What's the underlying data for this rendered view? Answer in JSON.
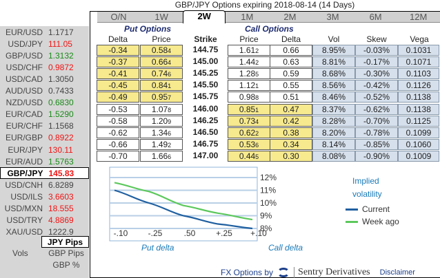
{
  "title": "GBP/JPY Options expiring 2018-08-14 (14 Days)",
  "sidebar": {
    "pairs": [
      {
        "symbol": "EUR/USD",
        "price": "1.1717",
        "trend": "flat"
      },
      {
        "symbol": "USD/JPY",
        "price": "111.05",
        "trend": "down"
      },
      {
        "symbol": "GBP/USD",
        "price": "1.3132",
        "trend": "up"
      },
      {
        "symbol": "USD/CHF",
        "price": "0.9872",
        "trend": "down"
      },
      {
        "symbol": "USD/CAD",
        "price": "1.3050",
        "trend": "flat"
      },
      {
        "symbol": "AUD/USD",
        "price": "0.7433",
        "trend": "flat"
      },
      {
        "symbol": "NZD/USD",
        "price": "0.6830",
        "trend": "up"
      },
      {
        "symbol": "EUR/CAD",
        "price": "1.5290",
        "trend": "up"
      },
      {
        "symbol": "EUR/CHF",
        "price": "1.1568",
        "trend": "flat"
      },
      {
        "symbol": "EUR/GBP",
        "price": "0.8922",
        "trend": "down"
      },
      {
        "symbol": "EUR/JPY",
        "price": "130.11",
        "trend": "down"
      },
      {
        "symbol": "EUR/AUD",
        "price": "1.5763",
        "trend": "up"
      },
      {
        "symbol": "GBP/JPY",
        "price": "145.83",
        "trend": "down",
        "selected": true
      },
      {
        "symbol": "USD/CNH",
        "price": "6.8289",
        "trend": "flat"
      },
      {
        "symbol": "USD/ILS",
        "price": "3.6603",
        "trend": "down"
      },
      {
        "symbol": "USD/MXN",
        "price": "18.555",
        "trend": "down"
      },
      {
        "symbol": "USD/TRY",
        "price": "4.8869",
        "trend": "down"
      },
      {
        "symbol": "XAU/USD",
        "price": "1222.9",
        "trend": "flat"
      }
    ],
    "units": {
      "vols_label": "Vols",
      "options": [
        "JPY Pips",
        "GBP Pips",
        "GBP %"
      ],
      "selected": "JPY Pips"
    }
  },
  "tabs": [
    "O/N",
    "1W",
    "2W",
    "1M",
    "2M",
    "3M",
    "6M",
    "12M"
  ],
  "active_tab": "2W",
  "put_header": "Put Options",
  "call_header": "Call Options",
  "columns": [
    "Delta",
    "Price",
    "Strike",
    "Price",
    "Delta",
    "Vol",
    "Skew",
    "Vega"
  ],
  "rows": [
    {
      "put_delta": "-0.34",
      "put_price": [
        "0.58",
        "4"
      ],
      "strike": "144.75",
      "call_price": [
        "1.61",
        "2"
      ],
      "call_delta": "0.66",
      "vol": "8.95%",
      "skew": "-0.03%",
      "vega": "0.1031",
      "put_itm": true
    },
    {
      "put_delta": "-0.37",
      "put_price": [
        "0.66",
        "4"
      ],
      "strike": "145.00",
      "call_price": [
        "1.44",
        "2"
      ],
      "call_delta": "0.63",
      "vol": "8.81%",
      "skew": "-0.17%",
      "vega": "0.1071",
      "put_itm": true
    },
    {
      "put_delta": "-0.41",
      "put_price": [
        "0.74",
        "6"
      ],
      "strike": "145.25",
      "call_price": [
        "1.28",
        "5"
      ],
      "call_delta": "0.59",
      "vol": "8.68%",
      "skew": "-0.30%",
      "vega": "0.1103",
      "put_itm": true
    },
    {
      "put_delta": "-0.45",
      "put_price": [
        "0.84",
        "1"
      ],
      "strike": "145.50",
      "call_price": [
        "1.12",
        "1"
      ],
      "call_delta": "0.55",
      "vol": "8.56%",
      "skew": "-0.42%",
      "vega": "0.1126",
      "put_itm": true
    },
    {
      "put_delta": "-0.49",
      "put_price": [
        "0.95",
        "7"
      ],
      "strike": "145.75",
      "call_price": [
        "0.98",
        "8"
      ],
      "call_delta": "0.51",
      "vol": "8.46%",
      "skew": "-0.52%",
      "vega": "0.1138",
      "put_itm": true
    },
    {
      "put_delta": "-0.53",
      "put_price": [
        "1.07",
        "8"
      ],
      "strike": "146.00",
      "call_price": [
        "0.85",
        "1"
      ],
      "call_delta": "0.47",
      "vol": "8.37%",
      "skew": "-0.62%",
      "vega": "0.1138",
      "put_itm": false
    },
    {
      "put_delta": "-0.58",
      "put_price": [
        "1.20",
        "9"
      ],
      "strike": "146.25",
      "call_price": [
        "0.73",
        "4"
      ],
      "call_delta": "0.42",
      "vol": "8.28%",
      "skew": "-0.70%",
      "vega": "0.1125",
      "put_itm": false
    },
    {
      "put_delta": "-0.62",
      "put_price": [
        "1.34",
        "6"
      ],
      "strike": "146.50",
      "call_price": [
        "0.62",
        "2"
      ],
      "call_delta": "0.38",
      "vol": "8.20%",
      "skew": "-0.78%",
      "vega": "0.1099",
      "put_itm": false
    },
    {
      "put_delta": "-0.66",
      "put_price": [
        "1.49",
        "2"
      ],
      "strike": "146.75",
      "call_price": [
        "0.53",
        "6"
      ],
      "call_delta": "0.34",
      "vol": "8.14%",
      "skew": "-0.85%",
      "vega": "0.1060",
      "put_itm": false
    },
    {
      "put_delta": "-0.70",
      "put_price": [
        "1.66",
        "6"
      ],
      "strike": "147.00",
      "call_price": [
        "0.44",
        "5"
      ],
      "call_delta": "0.30",
      "vol": "8.08%",
      "skew": "-0.90%",
      "vega": "0.1009",
      "put_itm": false
    }
  ],
  "chart_data": {
    "type": "line",
    "categories": [
      "-.10",
      "-.25",
      ".50",
      "+.25",
      "+.10"
    ],
    "series": [
      {
        "name": "Current",
        "values": [
          11.0,
          10.0,
          9.0,
          8.35,
          8.0
        ],
        "color": "#1f5fa0"
      },
      {
        "name": "Week ago",
        "values": [
          11.6,
          10.9,
          9.8,
          9.2,
          8.7
        ],
        "color": "#5cc85c"
      }
    ],
    "yticks": [
      "12%",
      "11%",
      "10%",
      "9%",
      "8%"
    ],
    "ylim": [
      8,
      12
    ],
    "title": "Implied volatility",
    "xlabel_left": "Put delta",
    "xlabel_right": "Call delta",
    "grid": true,
    "legend": "right"
  },
  "footer": {
    "prefix": "FX Options by",
    "brand": "Sentry Derivatives",
    "disclaimer": "Disclaimer"
  },
  "colors": {
    "itm": "#f6e98e",
    "stats": "#d6e0ec",
    "up": "#1a8a1a",
    "down": "#f01414",
    "header": "#1c2a6e"
  }
}
